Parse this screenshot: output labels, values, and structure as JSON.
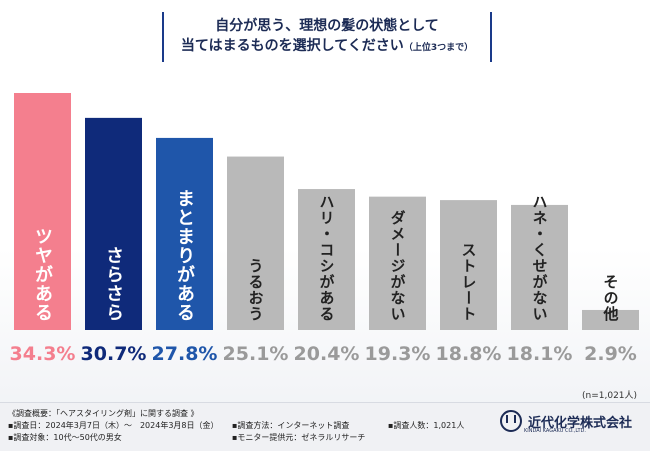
{
  "chart_data": {
    "type": "bar",
    "title_line1": "自分が思う、理想の髪の状態として",
    "title_line2": "当てはまるものを選択してください",
    "title_note": "（上位3つまで）",
    "categories": [
      "ツヤがある",
      "さらさら",
      "まとまりがある",
      "うるおう",
      "ハリ・コシがある",
      "ダメージがない",
      "ストレート",
      "ハネ・くせがない",
      "その他"
    ],
    "values": [
      34.3,
      30.7,
      27.8,
      25.1,
      20.4,
      19.3,
      18.8,
      18.1,
      2.9
    ],
    "value_labels": [
      "34.3%",
      "30.7%",
      "27.8%",
      "25.1%",
      "20.4%",
      "19.3%",
      "18.8%",
      "18.1%",
      "2.9%"
    ],
    "colors": [
      "#f47f8e",
      "#0f2a7a",
      "#1f56aa",
      "#b9b9b9",
      "#b9b9b9",
      "#b9b9b9",
      "#b9b9b9",
      "#b9b9b9",
      "#b9b9b9"
    ],
    "value_colors": [
      "#f47f8e",
      "#0f2a7a",
      "#1f56aa",
      "#9a9a9a",
      "#9a9a9a",
      "#9a9a9a",
      "#9a9a9a",
      "#9a9a9a",
      "#9a9a9a"
    ],
    "ylim": [
      0,
      36
    ]
  },
  "sample_note": "(n=1,021人)",
  "footer": {
    "overview": "《調査概要：「ヘアスタイリング剤」に関する調査 》",
    "date": "▪調査日：2024年3月7日（木）～　2024年3月8日（金）",
    "target": "▪調査対象：10代～50代の男女",
    "method": "▪調査方法：インターネット調査",
    "provider": "▪モニター提供元：ゼネラルリサーチ",
    "count": "▪調査人数：1,021人"
  },
  "logo": {
    "name": "近代化学株式会社",
    "sub": "KINDAI KAGAKU CO.,LTD."
  }
}
